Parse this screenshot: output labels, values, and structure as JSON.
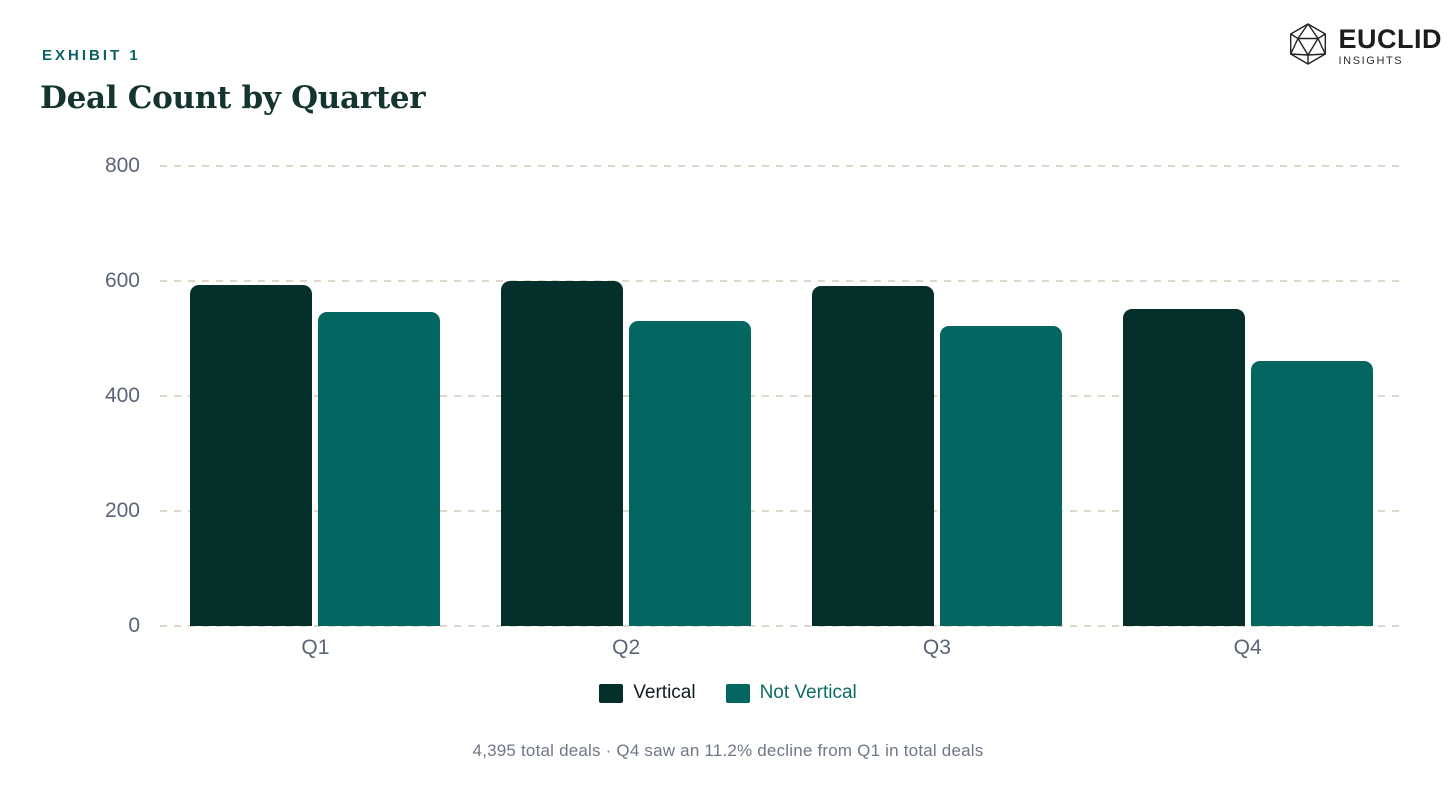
{
  "header": {
    "exhibit_label": "EXHIBIT 1",
    "title": "Deal Count by Quarter"
  },
  "brand": {
    "name": "EUCLID",
    "subtitle": "INSIGHTS",
    "icon": "icosahedron-wireframe-icon"
  },
  "chart_data": {
    "type": "bar",
    "title": "Deal Count by Quarter",
    "categories": [
      "Q1",
      "Q2",
      "Q3",
      "Q4"
    ],
    "series": [
      {
        "name": "Vertical",
        "color": "#052f2b",
        "label_color": "#0f1c1f",
        "values": [
          593,
          600,
          591,
          551
        ]
      },
      {
        "name": "Not Vertical",
        "color": "#046661",
        "label_color": "#0c6b66",
        "values": [
          546,
          531,
          522,
          461
        ]
      }
    ],
    "xlabel": "",
    "ylabel": "",
    "ylim": [
      0,
      800
    ],
    "yticks": [
      0,
      200,
      400,
      600,
      800
    ],
    "grid": "horizontal-dashed",
    "gridline_color": "#ded8ca",
    "axis_text_color": "#5b6478",
    "legend_position": "bottom"
  },
  "footnote": "4,395 total deals · Q4 saw an 11.2% decline from Q1 in total deals",
  "colors": {
    "background": "#ffffff",
    "eyebrow_teal": "#0b6165",
    "title_dark": "#14342f",
    "footnote_gray": "#6f7787"
  }
}
